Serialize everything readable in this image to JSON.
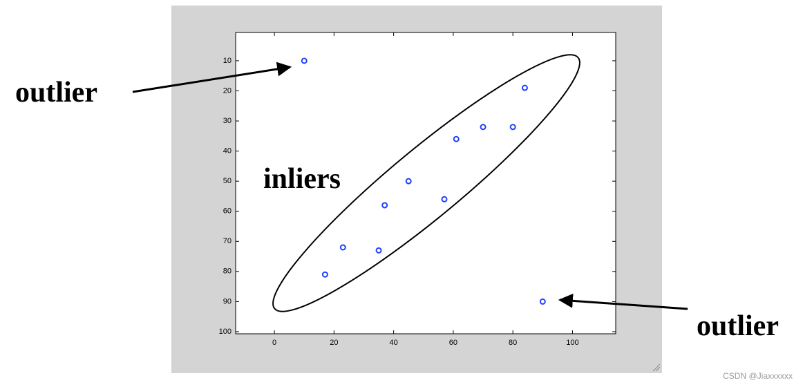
{
  "chart_data": {
    "type": "scatter",
    "x": [
      10,
      84,
      70,
      80,
      61,
      45,
      37,
      57,
      23,
      35,
      17,
      90
    ],
    "values": [
      10,
      19,
      32,
      32,
      36,
      50,
      58,
      56,
      72,
      73,
      81,
      90
    ],
    "color": "#1f3fff",
    "xlim": [
      -13,
      114.5
    ],
    "ylim": [
      0.6,
      100.7
    ],
    "y_inverted": true,
    "xticks": [
      0,
      20,
      40,
      60,
      80,
      100
    ],
    "yticks": [
      10,
      20,
      30,
      40,
      50,
      60,
      70,
      80,
      90,
      100
    ],
    "annotations": [
      "outlier",
      "inliers",
      "outlier"
    ]
  },
  "watermark": "CSDN @Jiaxxxxxx"
}
